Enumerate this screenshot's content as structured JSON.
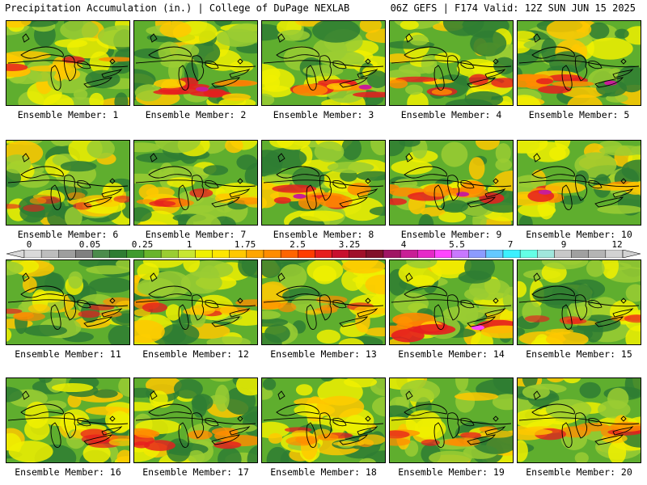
{
  "header": {
    "left_title": "Precipitation Accumulation (in.) | College of DuPage NEXLAB",
    "right_title": "06Z GEFS | F174 Valid: 12Z SUN JUN 15 2025"
  },
  "colorbar": {
    "labels": [
      "0",
      "0.05",
      "0.25",
      "1",
      "1.75",
      "2.5",
      "3.25",
      "4",
      "5.5",
      "7",
      "9",
      "12"
    ],
    "colors": [
      "#d9d9d9",
      "#bdbdbd",
      "#9e9e9e",
      "#808080",
      "#4c8c4c",
      "#2e7d32",
      "#3f9b2e",
      "#69b52b",
      "#9acd32",
      "#c8e632",
      "#f0f000",
      "#ffe600",
      "#ffc800",
      "#ffa500",
      "#ff8c00",
      "#ff6400",
      "#ff3c00",
      "#e61e1e",
      "#c8102e",
      "#a0102a",
      "#82102a",
      "#a01464",
      "#c81e96",
      "#e628c8",
      "#ff46ff",
      "#c878ff",
      "#8c9bff",
      "#64c8ff",
      "#3cf0ff",
      "#64ffe6",
      "#a0e6dc",
      "#c8c8c8",
      "#a0a0a0",
      "#b4b4b4",
      "#d2d2d2"
    ]
  },
  "members": [
    {
      "label": "Ensemble Member: 1"
    },
    {
      "label": "Ensemble Member: 2"
    },
    {
      "label": "Ensemble Member: 3"
    },
    {
      "label": "Ensemble Member: 4"
    },
    {
      "label": "Ensemble Member: 5"
    },
    {
      "label": "Ensemble Member: 6"
    },
    {
      "label": "Ensemble Member: 7"
    },
    {
      "label": "Ensemble Member: 8"
    },
    {
      "label": "Ensemble Member: 9"
    },
    {
      "label": "Ensemble Member: 10"
    },
    {
      "label": "Ensemble Member: 11"
    },
    {
      "label": "Ensemble Member: 12"
    },
    {
      "label": "Ensemble Member: 13"
    },
    {
      "label": "Ensemble Member: 14"
    },
    {
      "label": "Ensemble Member: 15"
    },
    {
      "label": "Ensemble Member: 16"
    },
    {
      "label": "Ensemble Member: 17"
    },
    {
      "label": "Ensemble Member: 18"
    },
    {
      "label": "Ensemble Member: 19"
    },
    {
      "label": "Ensemble Member: 20"
    }
  ],
  "map_colors": {
    "dark_green": "#2e7d32",
    "green": "#5fae2e",
    "light_green": "#9acd32",
    "yellow": "#f0f000",
    "gold": "#ffc800",
    "orange": "#ff8c00",
    "red": "#e61e1e",
    "dark_red": "#a0102a",
    "magenta": "#c81e96",
    "pink": "#ff46ff",
    "gray": "#9e9e9e"
  }
}
